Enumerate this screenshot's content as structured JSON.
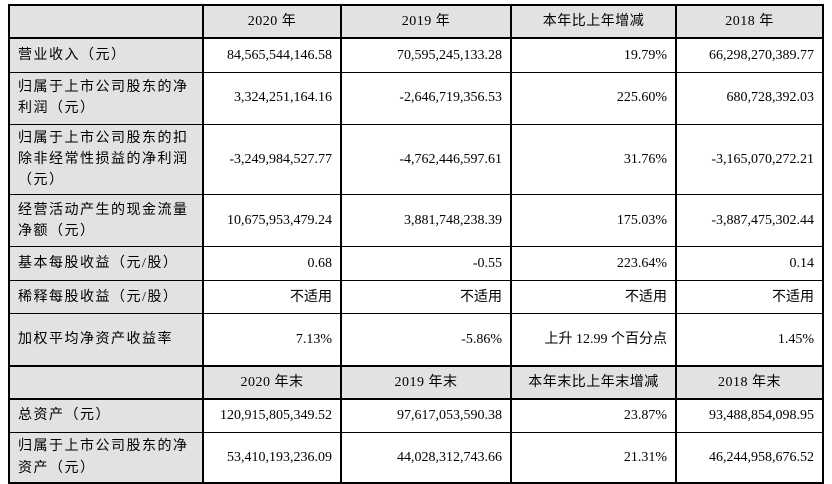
{
  "sections": [
    {
      "header": [
        "",
        "2020 年",
        "2019 年",
        "本年比上年增减",
        "2018 年"
      ],
      "rows": [
        {
          "label": "营业收入（元）",
          "values": [
            "84,565,544,146.58",
            "70,595,245,133.28",
            "19.79%",
            "66,298,270,389.77"
          ]
        },
        {
          "label": "归属于上市公司股东的净利润（元）",
          "values": [
            "3,324,251,164.16",
            "-2,646,719,356.53",
            "225.60%",
            "680,728,392.03"
          ]
        },
        {
          "label": "归属于上市公司股东的扣除非经常性损益的净利润（元）",
          "values": [
            "-3,249,984,527.77",
            "-4,762,446,597.61",
            "31.76%",
            "-3,165,070,272.21"
          ]
        },
        {
          "label": "经营活动产生的现金流量净额（元）",
          "values": [
            "10,675,953,479.24",
            "3,881,748,238.39",
            "175.03%",
            "-3,887,475,302.44"
          ]
        },
        {
          "label": "基本每股收益（元/股）",
          "values": [
            "0.68",
            "-0.55",
            "223.64%",
            "0.14"
          ]
        },
        {
          "label": "稀释每股收益（元/股）",
          "values": [
            "不适用",
            "不适用",
            "不适用",
            "不适用"
          ]
        },
        {
          "label": "加权平均净资产收益率",
          "values": [
            "7.13%",
            "-5.86%",
            "上升 12.99 个百分点",
            "1.45%"
          ]
        }
      ]
    },
    {
      "header": [
        "",
        "2020 年末",
        "2019 年末",
        "本年末比上年末增减",
        "2018 年末"
      ],
      "rows": [
        {
          "label": "总资产（元）",
          "values": [
            "120,915,805,349.52",
            "97,617,053,590.38",
            "23.87%",
            "93,488,854,098.95"
          ]
        },
        {
          "label": "归属于上市公司股东的净资产（元）",
          "values": [
            "53,410,193,236.09",
            "44,028,312,743.66",
            "21.31%",
            "46,244,958,676.52"
          ]
        }
      ]
    }
  ],
  "colors": {
    "header_bg": "#e2e2e2",
    "label_bg": "#e2e2e2",
    "border": "#000000",
    "cell_bg": "#ffffff",
    "text": "#000000"
  }
}
